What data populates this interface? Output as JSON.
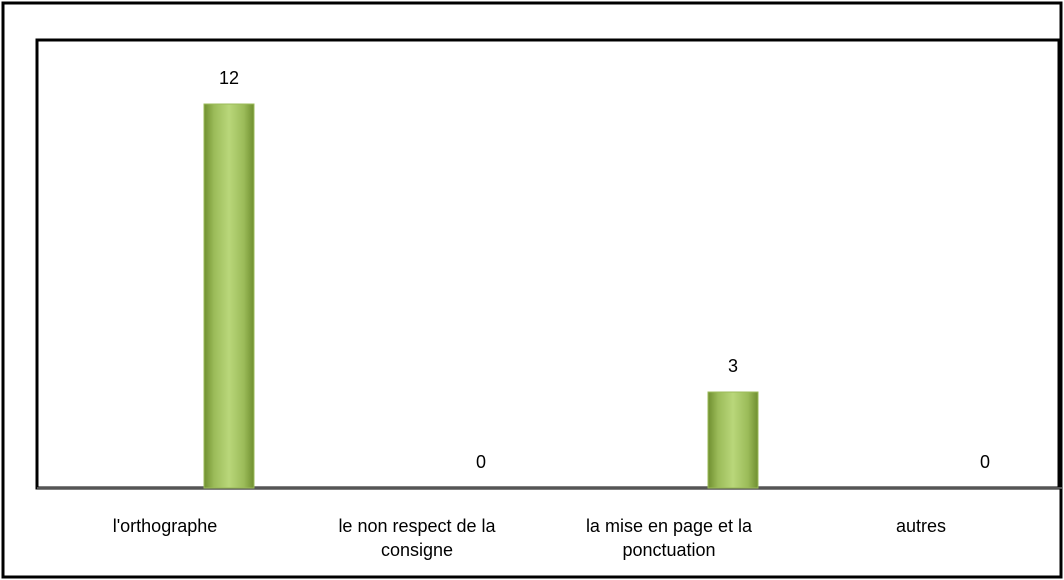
{
  "chart_data": {
    "type": "bar",
    "categories": [
      "l'orthographe",
      "le non respect de la consigne",
      "la mise en page et la ponctuation",
      "autres"
    ],
    "values": [
      12,
      0,
      3,
      0
    ],
    "color": "#9bbb59"
  }
}
